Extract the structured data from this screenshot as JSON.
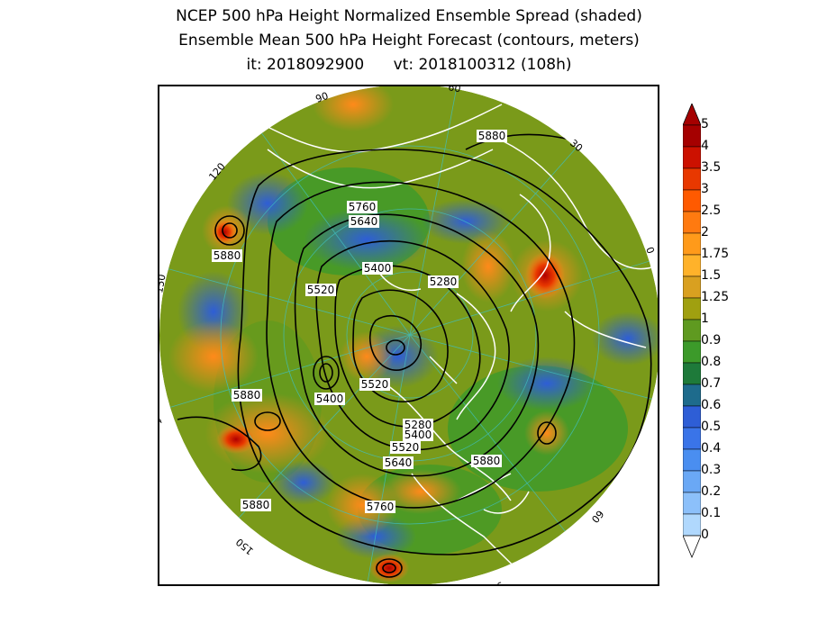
{
  "titles": {
    "line1": "NCEP 500 hPa Height Normalized Ensemble Spread (shaded)",
    "line2": "Ensemble Mean 500 hPa Height Forecast (contours, meters)",
    "line3": "it: 2018092900      vt: 2018100312 (108h)"
  },
  "map": {
    "projection": "polar-stereographic-north",
    "longitude_labels": [
      "60",
      "30",
      "0",
      "30",
      "60",
      "90",
      "120",
      "150",
      "180",
      "150",
      "120",
      "90"
    ],
    "contour_labels": [
      "5880",
      "5760",
      "5640",
      "5400",
      "5520",
      "5280",
      "5880",
      "5400",
      "5520",
      "5280",
      "5400",
      "5520",
      "5640",
      "5880",
      "5760",
      "5880",
      "5880"
    ]
  },
  "colorbar": {
    "levels": [
      "5",
      "4",
      "3.5",
      "3",
      "2.5",
      "2",
      "1.75",
      "1.5",
      "1.25",
      "1",
      "0.9",
      "0.8",
      "0.7",
      "0.6",
      "0.5",
      "0.4",
      "0.3",
      "0.2",
      "0.1",
      "0"
    ],
    "colors": [
      "#a50000",
      "#cc1100",
      "#e83800",
      "#ff5a00",
      "#ff7a10",
      "#ff9a1a",
      "#ffb22a",
      "#d9a020",
      "#a0a010",
      "#5f9a20",
      "#3c9a2a",
      "#1e7a3a",
      "#1e6b8c",
      "#2e5ed6",
      "#3a74e8",
      "#4a8ef0",
      "#6aa8f5",
      "#8cc0fa",
      "#b0d8fd"
    ]
  }
}
